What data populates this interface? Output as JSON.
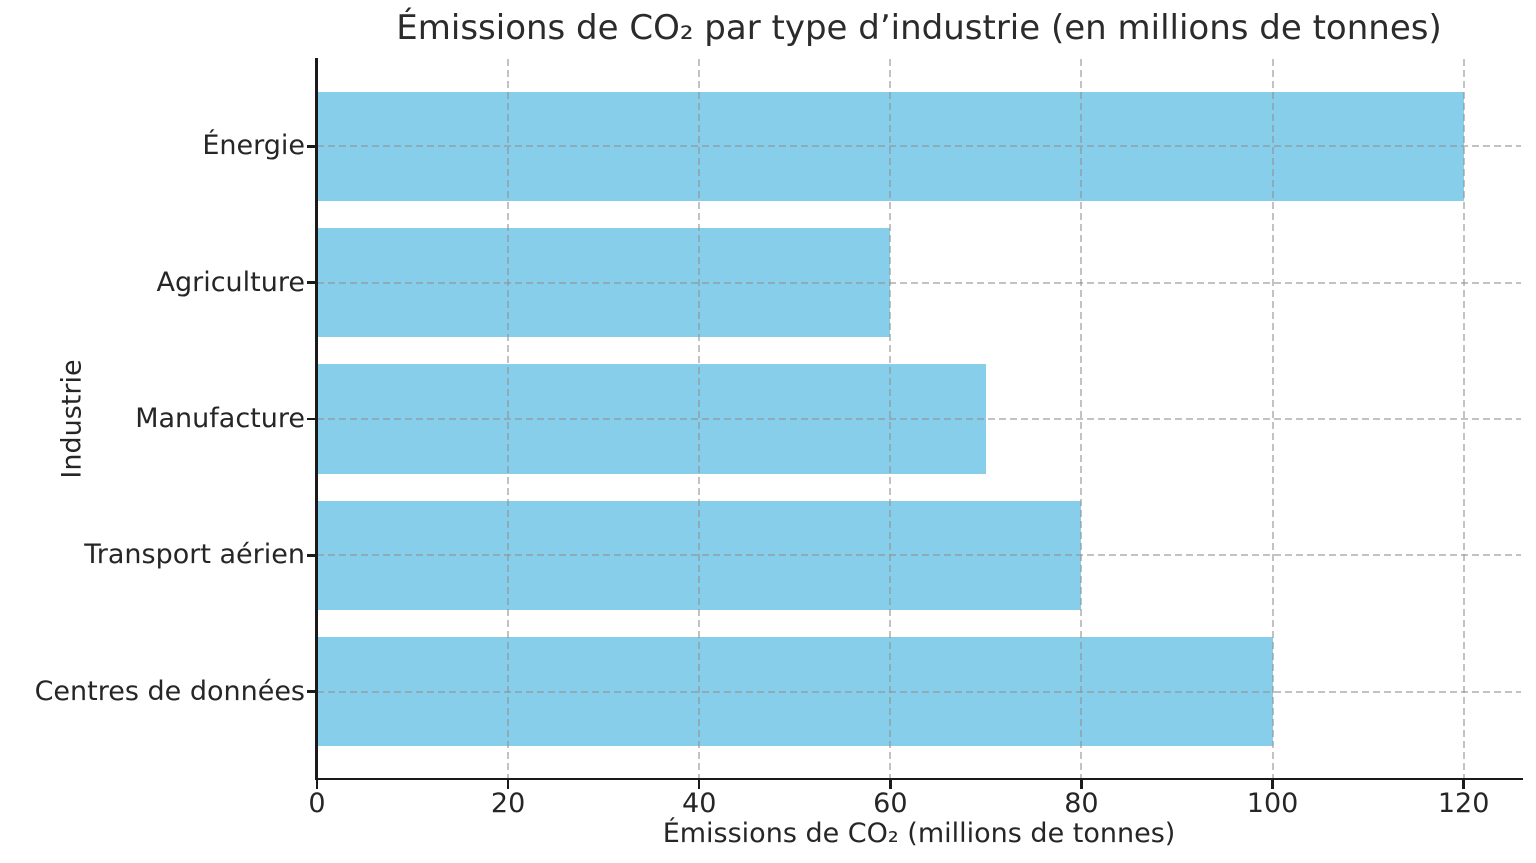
{
  "chart_data": {
    "type": "bar",
    "orientation": "horizontal",
    "title": "Émissions de CO₂ par type d’industrie (en millions de tonnes)",
    "xlabel": "Émissions de CO₂ (millions de tonnes)",
    "ylabel": "Industrie",
    "categories": [
      "Énergie",
      "Agriculture",
      "Manufacture",
      "Transport aérien",
      "Centres de données"
    ],
    "values": [
      120,
      60,
      70,
      80,
      100
    ],
    "xticks": [
      0,
      20,
      40,
      60,
      80,
      100,
      120
    ],
    "xlim": [
      0,
      126
    ],
    "grid": "dashed",
    "legend": "none",
    "bar_color": "#87CEEB",
    "grid_color": "#c4c4c4",
    "axis_color": "#1a1a1a",
    "text_color": "#262626",
    "background_color": "#ffffff"
  }
}
